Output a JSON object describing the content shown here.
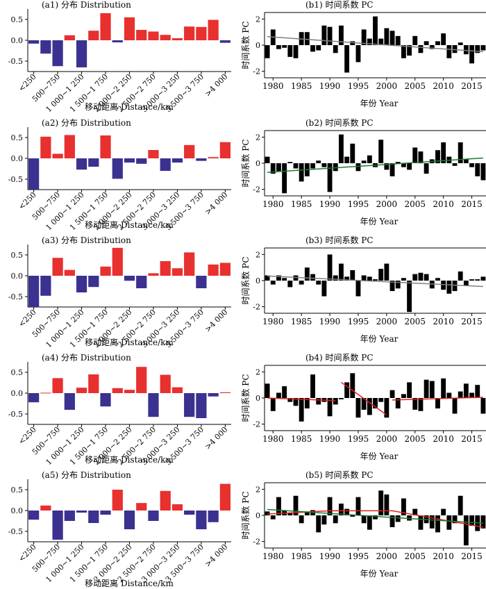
{
  "colors": {
    "positive": "#e8302f",
    "negative": "#3b3190",
    "pc_bar": "#000000",
    "trend_gray": "#808080",
    "trend_green": "#1e7a2e",
    "trend_red": "#e02020"
  },
  "dist_common": {
    "categories": [
      "<250",
      "500~750",
      "1 000~1 250",
      "1 500~1 750",
      "2 000~2 250",
      "2 500~2 750",
      "3 000~3 250",
      "3 500~3 750",
      ">4 000"
    ],
    "xlabel": "移动距离 Distance/km",
    "yticks": [
      "0.5",
      "0.0",
      "-0.5"
    ]
  },
  "pc_common": {
    "ylabel": "时间系数 PC",
    "xlabel": "年份 Year",
    "xticks": [
      "1980",
      "1985",
      "1990",
      "1995",
      "2000",
      "2005",
      "2010",
      "2015"
    ],
    "yticks": [
      "2",
      "0",
      "-2"
    ]
  },
  "chart_data": [
    {
      "id": "a1",
      "type": "bar",
      "title": "(a1) 分布 Distribution",
      "ylim": [
        -0.75,
        0.75
      ],
      "values": [
        -0.08,
        -0.32,
        -0.62,
        0.12,
        -0.65,
        0.23,
        0.65,
        -0.05,
        0.55,
        0.25,
        0.21,
        0.13,
        0.05,
        0.33,
        0.32,
        0.49,
        -0.06
      ]
    },
    {
      "id": "a2",
      "type": "bar",
      "title": "(a2) 分布 Distribution",
      "ylim": [
        -0.75,
        0.75
      ],
      "values": [
        -0.75,
        0.52,
        0.11,
        0.56,
        -0.27,
        -0.2,
        0.55,
        -0.49,
        -0.1,
        -0.13,
        0.2,
        -0.3,
        -0.1,
        0.32,
        -0.06,
        0.03,
        0.39
      ]
    },
    {
      "id": "a3",
      "type": "bar",
      "title": "(a3) 分布 Distribution",
      "ylim": [
        -0.75,
        0.75
      ],
      "values": [
        -0.75,
        -0.48,
        0.43,
        0.14,
        -0.4,
        -0.27,
        0.22,
        0.67,
        -0.12,
        -0.3,
        0.06,
        0.35,
        0.18,
        0.56,
        -0.3,
        0.27,
        0.31
      ]
    },
    {
      "id": "a4",
      "type": "bar",
      "title": "(a4) 分布 Distribution",
      "ylim": [
        -0.75,
        0.75
      ],
      "values": [
        -0.22,
        0.01,
        0.36,
        -0.4,
        0.13,
        0.45,
        -0.32,
        0.12,
        0.08,
        0.63,
        -0.57,
        0.44,
        0.14,
        -0.57,
        -0.6,
        -0.08,
        0.02
      ]
    },
    {
      "id": "a5",
      "type": "bar",
      "title": "(a5) 分布 Distribution",
      "ylim": [
        -0.75,
        0.75
      ],
      "values": [
        -0.22,
        0.12,
        -0.7,
        -0.25,
        -0.05,
        -0.3,
        -0.1,
        0.5,
        -0.45,
        0.18,
        -0.25,
        0.47,
        0.15,
        -0.1,
        -0.45,
        -0.28,
        0.64
      ]
    },
    {
      "id": "b1",
      "type": "bar",
      "title": "(b1) 时间系数 PC",
      "xlim": [
        1979,
        2017
      ],
      "ylim": [
        -2.5,
        2.5
      ],
      "x": [
        1979,
        1980,
        1981,
        1982,
        1983,
        1984,
        1985,
        1986,
        1987,
        1988,
        1989,
        1990,
        1991,
        1992,
        1993,
        1994,
        1995,
        1996,
        1997,
        1998,
        1999,
        2000,
        2001,
        2002,
        2003,
        2004,
        2005,
        2006,
        2007,
        2008,
        2009,
        2010,
        2011,
        2012,
        2013,
        2014,
        2015,
        2016,
        2017
      ],
      "values": [
        -1.0,
        1.2,
        -0.3,
        -0.2,
        -0.9,
        -1.0,
        1.0,
        1.0,
        -0.5,
        -0.4,
        1.5,
        1.4,
        -0.6,
        1.5,
        -2.1,
        0.3,
        -1.3,
        1.2,
        0.5,
        2.2,
        0.5,
        1.3,
        1.1,
        0.7,
        -1.0,
        -0.8,
        0.7,
        -0.6,
        0.3,
        -0.3,
        0.3,
        0.9,
        -1.0,
        -0.6,
        0.2,
        -0.7,
        -1.4,
        -0.6,
        -0.4
      ],
      "trends": [
        {
          "color": "gray",
          "points": [
            [
              1979,
              0.65
            ],
            [
              2017,
              -0.5
            ]
          ]
        }
      ]
    },
    {
      "id": "b2",
      "type": "bar",
      "title": "(b2) 时间系数 PC",
      "xlim": [
        1979,
        2017
      ],
      "ylim": [
        -2.5,
        2.5
      ],
      "x": [
        1979,
        1980,
        1981,
        1982,
        1983,
        1984,
        1985,
        1986,
        1987,
        1988,
        1989,
        1990,
        1991,
        1992,
        1993,
        1994,
        1995,
        1996,
        1997,
        1998,
        1999,
        2000,
        2001,
        2002,
        2003,
        2004,
        2005,
        2006,
        2007,
        2008,
        2009,
        2010,
        2011,
        2012,
        2013,
        2014,
        2015,
        2016,
        2017
      ],
      "values": [
        0.5,
        -0.8,
        -0.6,
        -2.3,
        0.1,
        -0.4,
        -1.4,
        -1.0,
        -0.4,
        0.2,
        -0.3,
        -2.2,
        -0.6,
        2.2,
        0.5,
        1.5,
        -0.6,
        0.2,
        0.6,
        -0.3,
        1.8,
        -0.5,
        -1.0,
        0.1,
        -0.3,
        -0.5,
        1.2,
        0.9,
        -0.8,
        0.3,
        1.0,
        1.6,
        0.5,
        -0.2,
        1.6,
        0.3,
        -0.3,
        -1.0,
        -1.3
      ],
      "trends": [
        {
          "color": "green",
          "points": [
            [
              1979,
              -0.7
            ],
            [
              2017,
              0.4
            ]
          ]
        }
      ]
    },
    {
      "id": "b3",
      "type": "bar",
      "title": "(b3) 时间系数 PC",
      "xlim": [
        1979,
        2017
      ],
      "ylim": [
        -2.5,
        2.5
      ],
      "x": [
        1979,
        1980,
        1981,
        1982,
        1983,
        1984,
        1985,
        1986,
        1987,
        1988,
        1989,
        1990,
        1991,
        1992,
        1993,
        1994,
        1995,
        1996,
        1997,
        1998,
        1999,
        2000,
        2001,
        2002,
        2003,
        2004,
        2005,
        2006,
        2007,
        2008,
        2009,
        2010,
        2011,
        2012,
        2013,
        2014,
        2015,
        2016,
        2017
      ],
      "values": [
        0.4,
        -0.3,
        0.4,
        0.2,
        -0.5,
        0.4,
        -0.3,
        1.0,
        0.5,
        -0.3,
        -1.2,
        2.0,
        0.4,
        1.3,
        0.3,
        0.8,
        -1.2,
        0.4,
        0.3,
        0.1,
        0.9,
        1.3,
        -0.8,
        -0.6,
        0.2,
        -2.4,
        0.5,
        0.6,
        0.5,
        -0.6,
        0.2,
        -0.7,
        -1.0,
        -0.8,
        0.7,
        -0.4,
        0.1,
        0.1,
        0.3
      ],
      "trends": [
        {
          "color": "gray",
          "points": [
            [
              1979,
              0.35
            ],
            [
              2017,
              -0.45
            ]
          ]
        }
      ]
    },
    {
      "id": "b4",
      "type": "bar",
      "title": "(b4) 时间系数 PC",
      "xlim": [
        1979,
        2017
      ],
      "ylim": [
        -2.5,
        2.5
      ],
      "x": [
        1979,
        1980,
        1981,
        1982,
        1983,
        1984,
        1985,
        1986,
        1987,
        1988,
        1989,
        1990,
        1991,
        1992,
        1993,
        1994,
        1995,
        1996,
        1997,
        1998,
        1999,
        2000,
        2001,
        2002,
        2003,
        2004,
        2005,
        2006,
        2007,
        2008,
        2009,
        2010,
        2011,
        2012,
        2013,
        2014,
        2015,
        2016,
        2017
      ],
      "values": [
        1.1,
        -1.0,
        0.4,
        0.9,
        -0.3,
        -0.6,
        -1.8,
        -0.8,
        1.8,
        -0.5,
        -0.3,
        -1.4,
        -0.5,
        -0.1,
        1.2,
        1.9,
        -1.5,
        -0.9,
        -1.3,
        -0.8,
        -0.3,
        -1.5,
        0.6,
        -0.8,
        0.3,
        1.2,
        -0.9,
        -1.0,
        1.4,
        1.3,
        -0.8,
        1.5,
        0.4,
        -1.2,
        0.5,
        1.1,
        0.4,
        1.0,
        -1.2
      ],
      "trends": [
        {
          "color": "red",
          "points": [
            [
              1979,
              0.0
            ],
            [
              1991,
              -0.2
            ]
          ]
        },
        {
          "color": "red",
          "points": [
            [
              1992,
              1.2
            ],
            [
              2000,
              -1.3
            ]
          ]
        },
        {
          "color": "red",
          "points": [
            [
              2001,
              -0.15
            ],
            [
              2017,
              0.05
            ]
          ]
        }
      ]
    },
    {
      "id": "b5",
      "type": "bar",
      "title": "(b5) 时间系数 PC",
      "xlim": [
        1979,
        2017
      ],
      "ylim": [
        -2.5,
        2.5
      ],
      "x": [
        1979,
        1980,
        1981,
        1982,
        1983,
        1984,
        1985,
        1986,
        1987,
        1988,
        1989,
        1990,
        1991,
        1992,
        1993,
        1994,
        1995,
        1996,
        1997,
        1998,
        1999,
        2000,
        2001,
        2002,
        2003,
        2004,
        2005,
        2006,
        2007,
        2008,
        2009,
        2010,
        2011,
        2012,
        2013,
        2014,
        2015,
        2016,
        2017
      ],
      "values": [
        0.3,
        -0.3,
        1.4,
        0.4,
        0.2,
        1.5,
        -0.6,
        0.3,
        0.4,
        -1.3,
        -0.7,
        1.4,
        -0.6,
        0.9,
        0.5,
        -0.1,
        1.4,
        -0.6,
        -1.1,
        -0.3,
        1.9,
        1.6,
        -0.9,
        -0.5,
        1.3,
        -0.4,
        0.5,
        -1.1,
        -0.6,
        -1.0,
        -1.3,
        0.5,
        -1.1,
        -0.6,
        1.5,
        -2.3,
        -0.8,
        -1.2,
        -1.0
      ],
      "trends": [
        {
          "color": "red",
          "points": [
            [
              1979,
              0.1
            ],
            [
              1990,
              0.35
            ],
            [
              2001,
              0.35
            ],
            [
              2017,
              -0.9
            ]
          ]
        },
        {
          "color": "green",
          "points": [
            [
              1979,
              0.45
            ],
            [
              2017,
              -0.6
            ]
          ]
        }
      ]
    }
  ]
}
